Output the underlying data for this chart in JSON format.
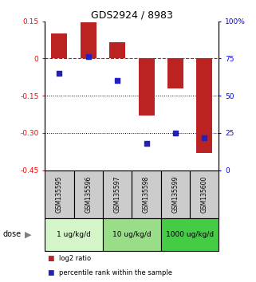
{
  "title": "GDS2924 / 8983",
  "samples": [
    "GSM135595",
    "GSM135596",
    "GSM135597",
    "GSM135598",
    "GSM135599",
    "GSM135600"
  ],
  "log2_ratio": [
    0.1,
    0.145,
    0.065,
    -0.23,
    -0.12,
    -0.38
  ],
  "percentile_rank": [
    65,
    76,
    60,
    18,
    25,
    22
  ],
  "bar_color": "#bb2222",
  "dot_color": "#2222bb",
  "ylim_left": [
    -0.45,
    0.15
  ],
  "ylim_right": [
    0,
    100
  ],
  "yticks_left": [
    0.15,
    0.0,
    -0.15,
    -0.3,
    -0.45
  ],
  "ytick_labels_left": [
    "0.15",
    "0",
    "-0.15",
    "-0.30",
    "-0.45"
  ],
  "yticks_right": [
    100,
    75,
    50,
    25,
    0
  ],
  "ytick_labels_right": [
    "100%",
    "75",
    "50",
    "25",
    "0"
  ],
  "hline_y": 0,
  "dotted_lines": [
    -0.15,
    -0.3
  ],
  "dose_groups": [
    {
      "label": "1 ug/kg/d",
      "cols": [
        0,
        1
      ],
      "color": "#d4f5c8"
    },
    {
      "label": "10 ug/kg/d",
      "cols": [
        2,
        3
      ],
      "color": "#99dd88"
    },
    {
      "label": "1000 ug/kg/d",
      "cols": [
        4,
        5
      ],
      "color": "#44cc44"
    }
  ],
  "dose_label": "dose",
  "legend_bar_label": "log2 ratio",
  "legend_dot_label": "percentile rank within the sample",
  "bar_width": 0.55,
  "sample_box_color": "#cccccc",
  "bg_color": "#ffffff"
}
